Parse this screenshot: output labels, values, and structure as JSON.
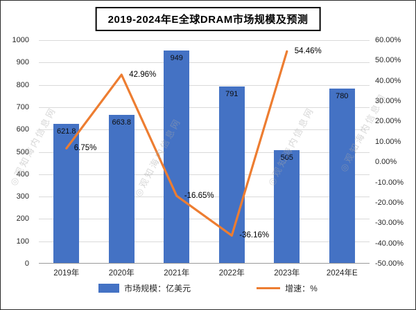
{
  "title": "2019-2024年E全球DRAM市场规模及预测",
  "watermark": "◎观知海内信息网",
  "legend": [
    {
      "label": "市场规模：亿美元",
      "color": "#4472C4",
      "type": "bar"
    },
    {
      "label": "增速：%",
      "color": "#ED7D31",
      "type": "line"
    }
  ],
  "chart_data": {
    "type": "bar+line",
    "title": "2019-2024年E全球DRAM市场规模及预测",
    "categories": [
      "2019年",
      "2020年",
      "2021年",
      "2022年",
      "2023年",
      "2024年E"
    ],
    "series": [
      {
        "name": "市场规模：亿美元",
        "type": "bar",
        "axis": "left",
        "color": "#4472C4",
        "values": [
          621.8,
          663.8,
          949,
          791,
          505,
          780
        ],
        "labels": [
          "621.8",
          "663.8",
          "949",
          "791",
          "505",
          "780"
        ]
      },
      {
        "name": "增速：%",
        "type": "line",
        "axis": "right",
        "color": "#ED7D31",
        "values": [
          6.75,
          42.96,
          -16.65,
          -36.16,
          54.46
        ],
        "labels": [
          "6.75%",
          "42.96%",
          "-16.65%",
          "-36.16%",
          "54.46%"
        ]
      }
    ],
    "left_axis": {
      "min": 0,
      "max": 1000,
      "step": 100,
      "ticks": [
        "1000",
        "900",
        "800",
        "700",
        "600",
        "500",
        "400",
        "300",
        "200",
        "100",
        "0"
      ]
    },
    "right_axis": {
      "min": -50,
      "max": 60,
      "step": 10,
      "ticks": [
        "60.00%",
        "50.00%",
        "40.00%",
        "30.00%",
        "20.00%",
        "10.00%",
        "0.00%",
        "-10.00%",
        "-20.00%",
        "-30.00%",
        "-40.00%",
        "-50.00%"
      ]
    },
    "grid": true,
    "legend_position": "bottom"
  }
}
